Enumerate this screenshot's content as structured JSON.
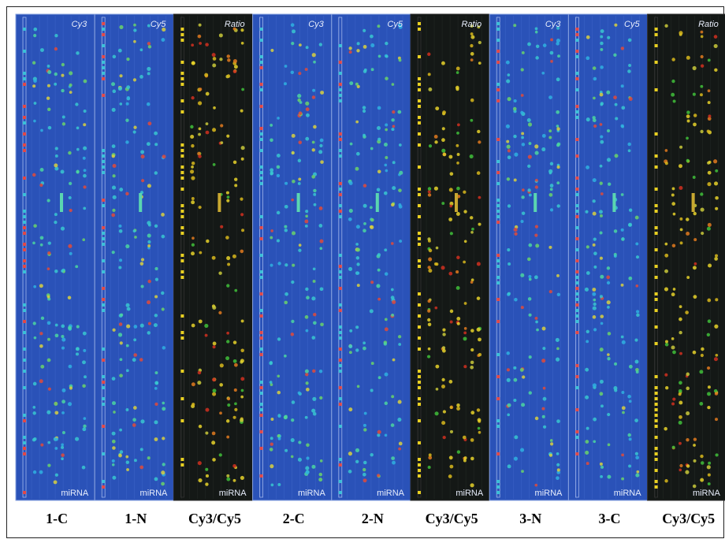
{
  "panels": [
    {
      "header": "Cy3",
      "footer": "miRNA",
      "label": "1-C",
      "color": "#2a52b8"
    },
    {
      "header": "Cy5",
      "footer": "miRNA",
      "label": "1-N",
      "color": "#2a52b8"
    },
    {
      "header": "Ratio",
      "footer": "miRNA",
      "label": "Cy3/Cy5",
      "color": "#141816"
    },
    {
      "header": "Cy3",
      "footer": "miRNA",
      "label": "2-C",
      "color": "#2a52b8"
    },
    {
      "header": "Cy5",
      "footer": "miRNA",
      "label": "2-N",
      "color": "#2a52b8"
    },
    {
      "header": "Ratio",
      "footer": "miRNA",
      "label": "Cy3/Cy5",
      "color": "#141816"
    },
    {
      "header": "Cy3",
      "footer": "miRNA",
      "label": "3-N",
      "color": "#2a52b8"
    },
    {
      "header": "Cy5",
      "footer": "miRNA",
      "label": "3-C",
      "color": "#2a52b8"
    },
    {
      "header": "Ratio",
      "footer": "miRNA",
      "label": "Cy3/Cy5",
      "color": "#141816"
    }
  ]
}
